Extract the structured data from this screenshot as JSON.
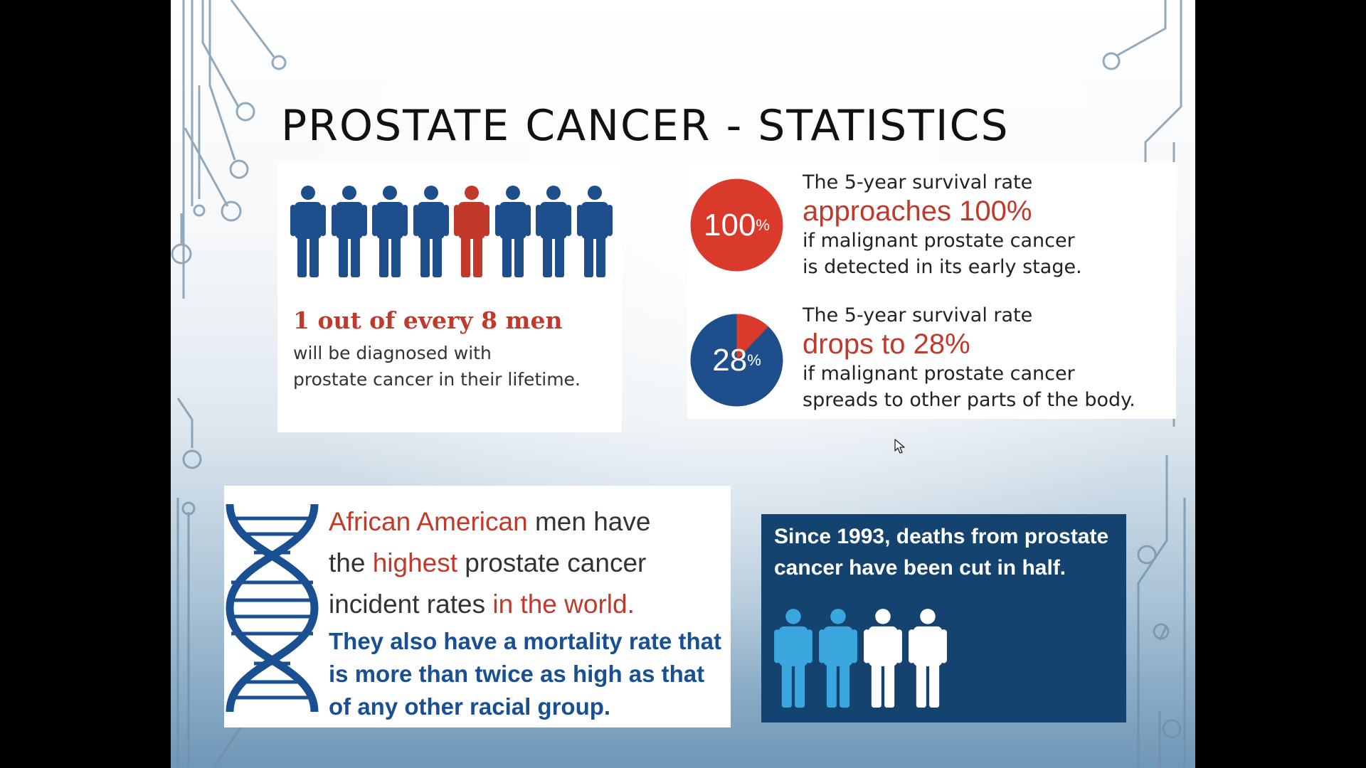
{
  "slide": {
    "title": "PROSTATE CANCER - STATISTICS"
  },
  "card_men": {
    "headline": "1 out of every 8 men",
    "body_line1": "will be diagnosed with",
    "body_line2": "prostate cancer in their lifetime.",
    "figure_count": 8,
    "highlighted_index": 4,
    "colors": {
      "normal": "#1f4e8c",
      "highlight": "#c0392b"
    }
  },
  "card_survival": {
    "early": {
      "pie_number": "100",
      "pie_percent_sign": "%",
      "pie_fraction": 1.0,
      "intro": "The 5-year survival rate",
      "emphasis": "approaches 100%",
      "line1": "if malignant prostate cancer",
      "line2": "is detected in its early stage."
    },
    "spread": {
      "pie_number": "28",
      "pie_percent_sign": "%",
      "pie_fraction": 0.28,
      "intro": "The 5-year survival rate",
      "emphasis": "drops to 28%",
      "line1": "if malignant prostate cancer",
      "line2": "spreads to other parts of the body."
    },
    "colors": {
      "red": "#d93a2b",
      "blue": "#1f4e8c"
    }
  },
  "card_aa": {
    "line1_red": "African American",
    "line1_rest": " men have",
    "line2_pre": "the ",
    "line2_red": "highest",
    "line2_rest": " prostate cancer",
    "line3_pre": "incident rates ",
    "line3_red": "in the world.",
    "blue_line1": "They also have a mortality rate that",
    "blue_line2": "is more than twice as high as that",
    "blue_line3": "of any other racial group."
  },
  "card_deaths": {
    "line1": "Since 1993, deaths from prostate",
    "line2": "cancer have been cut in half.",
    "figure_count": 4,
    "colors": {
      "light_blue": "#3aa6de",
      "white": "#ffffff",
      "background": "#144370"
    }
  },
  "icons": [
    "person-icon",
    "dna-icon",
    "pie-chart-icon",
    "circuit-decoration",
    "mouse-cursor-icon"
  ]
}
